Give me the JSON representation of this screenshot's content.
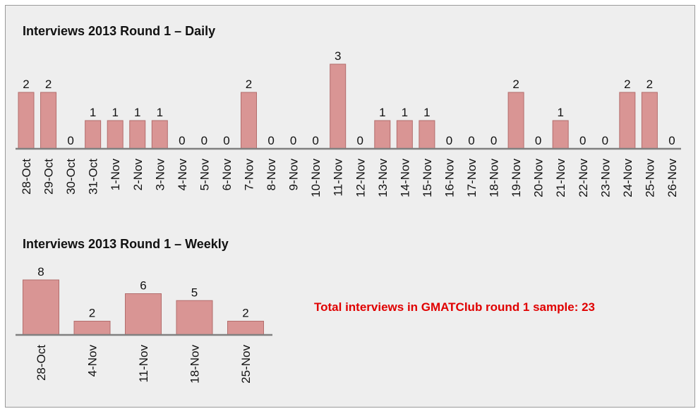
{
  "chart_data": [
    {
      "type": "bar",
      "title": "Interviews 2013  Round 1 – Daily",
      "categories": [
        "28-Oct",
        "29-Oct",
        "30-Oct",
        "31-Oct",
        "1-Nov",
        "2-Nov",
        "3-Nov",
        "4-Nov",
        "5-Nov",
        "6-Nov",
        "7-Nov",
        "8-Nov",
        "9-Nov",
        "10-Nov",
        "11-Nov",
        "12-Nov",
        "13-Nov",
        "14-Nov",
        "15-Nov",
        "16-Nov",
        "17-Nov",
        "18-Nov",
        "19-Nov",
        "20-Nov",
        "21-Nov",
        "22-Nov",
        "23-Nov",
        "24-Nov",
        "25-Nov",
        "26-Nov"
      ],
      "values": [
        2,
        2,
        0,
        1,
        1,
        1,
        1,
        0,
        0,
        0,
        2,
        0,
        0,
        0,
        3,
        0,
        1,
        1,
        1,
        0,
        0,
        0,
        2,
        0,
        1,
        0,
        0,
        2,
        2,
        0
      ],
      "ylim": [
        0,
        3
      ],
      "grid": false,
      "data_labels": true
    },
    {
      "type": "bar",
      "title": "Interviews 2013  Round 1 – Weekly",
      "categories": [
        "28-Oct",
        "4-Nov",
        "11-Nov",
        "18-Nov",
        "25-Nov"
      ],
      "values": [
        8,
        2,
        6,
        5,
        2
      ],
      "ylim": [
        0,
        8
      ],
      "grid": false,
      "data_labels": true
    }
  ],
  "annotation": "Total interviews in GMATClub round 1 sample: 23",
  "colors": {
    "bar_fill": "#d99594",
    "bar_stroke": "#b36d6c",
    "axis": "#808080",
    "annotation": "#e00000",
    "background": "#eeeeee"
  }
}
